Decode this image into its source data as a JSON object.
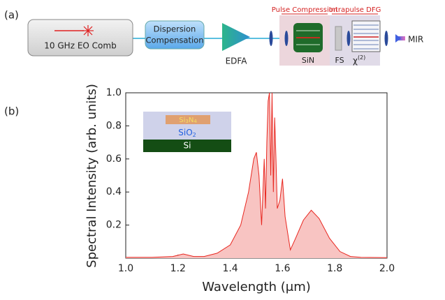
{
  "panels": {
    "a": "(a)",
    "b": "(b)"
  },
  "diagram": {
    "source": "10 GHz EO Comb",
    "dispersion": [
      "Dispersion",
      "Compensation"
    ],
    "edfa": "EDFA",
    "pulse_compression": "Pulse Compression",
    "intrapulse_dfg": "Intrapulse DFG",
    "sin": "SiN",
    "fs": "FS",
    "chi": "χ",
    "chi_order": "(2)",
    "mir": "MIR"
  },
  "inset": {
    "si3n4": [
      "Si",
      "3",
      "N",
      "4"
    ],
    "sio2": [
      "SiO",
      "2"
    ],
    "si": "Si"
  },
  "chart_data": {
    "type": "area",
    "xlabel": "Wavelength (μm)",
    "ylabel": "Spectral Intensity (arb. units)",
    "x": [
      1.0,
      1.1,
      1.18,
      1.22,
      1.26,
      1.3,
      1.35,
      1.4,
      1.44,
      1.47,
      1.49,
      1.5,
      1.51,
      1.52,
      1.53,
      1.535,
      1.54,
      1.545,
      1.55,
      1.555,
      1.56,
      1.565,
      1.57,
      1.575,
      1.58,
      1.59,
      1.6,
      1.61,
      1.63,
      1.65,
      1.68,
      1.71,
      1.74,
      1.78,
      1.82,
      1.86,
      1.9,
      2.0
    ],
    "values": [
      0.005,
      0.005,
      0.01,
      0.025,
      0.01,
      0.01,
      0.03,
      0.08,
      0.2,
      0.4,
      0.6,
      0.64,
      0.5,
      0.2,
      0.6,
      0.3,
      0.7,
      0.95,
      1.0,
      0.5,
      1.0,
      0.4,
      0.85,
      0.6,
      0.3,
      0.35,
      0.48,
      0.25,
      0.05,
      0.12,
      0.23,
      0.29,
      0.24,
      0.12,
      0.04,
      0.01,
      0.005,
      0.003
    ],
    "xlim": [
      1.0,
      2.0
    ],
    "ylim": [
      0,
      1.0
    ],
    "xticks": [
      {
        "value": 1,
        "label": "1.0"
      },
      1.2,
      1.4,
      1.6,
      1.8,
      {
        "value": 2,
        "label": "2.0"
      }
    ],
    "yticks": [
      0.2,
      0.4,
      0.6,
      0.8,
      {
        "value": 1,
        "label": "1.0"
      }
    ],
    "color": "#e8261f",
    "fill": "#f8c4c2"
  }
}
